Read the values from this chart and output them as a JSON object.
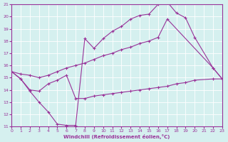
{
  "xlabel": "Windchill (Refroidissement éolien,°C)",
  "background_color": "#d5f0ef",
  "line_color": "#993399",
  "xlim": [
    0,
    23
  ],
  "ylim": [
    11,
    21
  ],
  "xticks": [
    0,
    1,
    2,
    3,
    4,
    5,
    6,
    7,
    8,
    9,
    10,
    11,
    12,
    13,
    14,
    15,
    16,
    17,
    18,
    19,
    20,
    21,
    22,
    23
  ],
  "yticks": [
    11,
    12,
    13,
    14,
    15,
    16,
    17,
    18,
    19,
    20,
    21
  ],
  "series1": [
    [
      0,
      15.5
    ],
    [
      1,
      14.9
    ],
    [
      2,
      13.9
    ],
    [
      3,
      13.0
    ],
    [
      4,
      12.2
    ],
    [
      5,
      11.2
    ],
    [
      6,
      11.1
    ],
    [
      7,
      11.1
    ],
    [
      8,
      18.2
    ],
    [
      9,
      17.4
    ],
    [
      10,
      18.2
    ],
    [
      11,
      18.8
    ],
    [
      12,
      19.2
    ],
    [
      13,
      19.8
    ],
    [
      14,
      20.1
    ],
    [
      15,
      20.2
    ],
    [
      16,
      21.0
    ],
    [
      17,
      21.2
    ],
    [
      18,
      20.3
    ],
    [
      19,
      19.9
    ],
    [
      20,
      18.3
    ],
    [
      22,
      15.8
    ],
    [
      23,
      14.9
    ]
  ],
  "series2": [
    [
      0,
      15.5
    ],
    [
      1,
      14.9
    ],
    [
      2,
      14.0
    ],
    [
      3,
      13.9
    ],
    [
      4,
      14.5
    ],
    [
      5,
      14.8
    ],
    [
      6,
      15.2
    ],
    [
      7,
      13.3
    ],
    [
      8,
      13.3
    ],
    [
      9,
      13.5
    ],
    [
      10,
      13.6
    ],
    [
      11,
      13.7
    ],
    [
      12,
      13.8
    ],
    [
      13,
      13.9
    ],
    [
      14,
      14.0
    ],
    [
      15,
      14.1
    ],
    [
      16,
      14.2
    ],
    [
      17,
      14.3
    ],
    [
      18,
      14.5
    ],
    [
      19,
      14.6
    ],
    [
      20,
      14.8
    ],
    [
      22,
      14.9
    ],
    [
      23,
      14.9
    ]
  ],
  "series3": [
    [
      0,
      15.5
    ],
    [
      1,
      15.3
    ],
    [
      2,
      15.2
    ],
    [
      3,
      15.0
    ],
    [
      4,
      15.2
    ],
    [
      5,
      15.5
    ],
    [
      6,
      15.8
    ],
    [
      7,
      16.0
    ],
    [
      8,
      16.2
    ],
    [
      9,
      16.5
    ],
    [
      10,
      16.8
    ],
    [
      11,
      17.0
    ],
    [
      12,
      17.3
    ],
    [
      13,
      17.5
    ],
    [
      14,
      17.8
    ],
    [
      15,
      18.0
    ],
    [
      16,
      18.3
    ],
    [
      17,
      19.8
    ],
    [
      22,
      15.8
    ],
    [
      23,
      14.9
    ]
  ]
}
